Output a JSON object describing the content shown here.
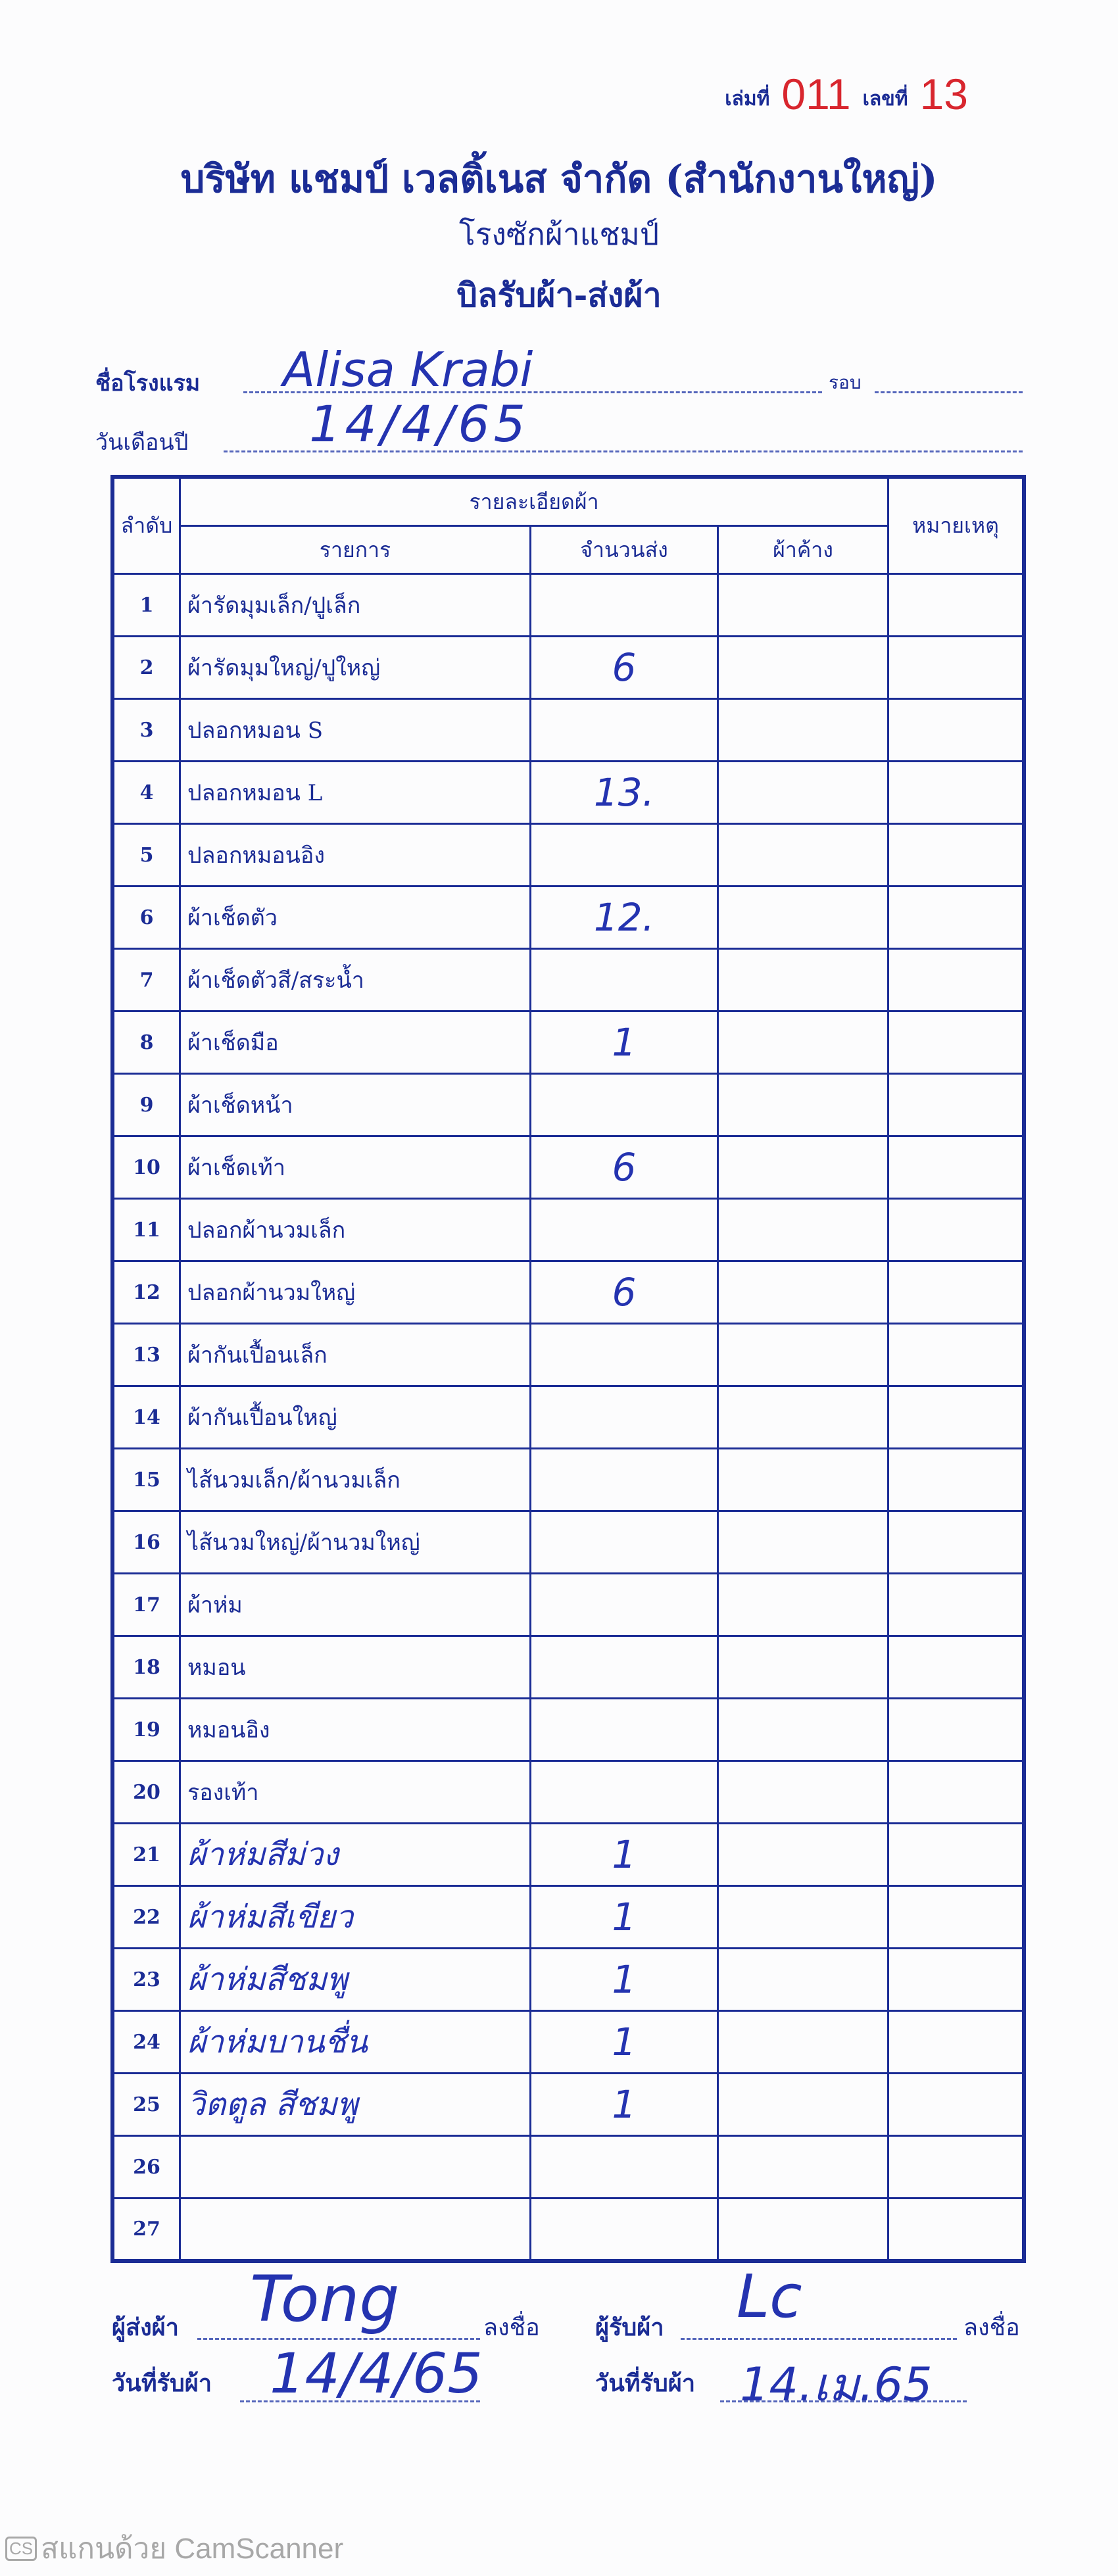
{
  "header": {
    "book_label": "เล่มที่",
    "book_no": "011",
    "number_label": "เลขที่",
    "number": "13",
    "company": "บริษัท แชมป์ เวลติ้เนส จำกัด (สำนักงานใหญ่)",
    "plant": "โรงซักผ้าแชมป์",
    "title": "บิลรับผ้า-ส่งผ้า"
  },
  "form": {
    "hotel_label": "ชื่อโรงแรม",
    "hotel_value": "Alisa Krabi",
    "round_label": "รอบ",
    "round_value": "",
    "date_label": "วันเดือนปี",
    "date_value": "14/4/65"
  },
  "table": {
    "col_no": "ลำดับ",
    "col_group": "รายละเอียดผ้า",
    "col_item": "รายการ",
    "col_qty": "จำนวนส่ง",
    "col_pending": "ผ้าค้าง",
    "col_note": "หมายเหตุ",
    "rows": [
      {
        "no": "1",
        "item": "ผ้ารัดมุมเล็ก/ปูเล็ก",
        "qty": ""
      },
      {
        "no": "2",
        "item": "ผ้ารัดมุมใหญ่/ปูใหญ่",
        "qty": "6"
      },
      {
        "no": "3",
        "item": "ปลอกหมอน S",
        "qty": ""
      },
      {
        "no": "4",
        "item": "ปลอกหมอน L",
        "qty": "13."
      },
      {
        "no": "5",
        "item": "ปลอกหมอนอิง",
        "qty": ""
      },
      {
        "no": "6",
        "item": "ผ้าเช็ดตัว",
        "qty": "12."
      },
      {
        "no": "7",
        "item": "ผ้าเช็ดตัวสี/สระน้ำ",
        "qty": ""
      },
      {
        "no": "8",
        "item": "ผ้าเช็ดมือ",
        "qty": "1"
      },
      {
        "no": "9",
        "item": "ผ้าเช็ดหน้า",
        "qty": ""
      },
      {
        "no": "10",
        "item": "ผ้าเช็ดเท้า",
        "qty": "6"
      },
      {
        "no": "11",
        "item": "ปลอกผ้านวมเล็ก",
        "qty": ""
      },
      {
        "no": "12",
        "item": "ปลอกผ้านวมใหญ่",
        "qty": "6"
      },
      {
        "no": "13",
        "item": "ผ้ากันเปื้อนเล็ก",
        "qty": ""
      },
      {
        "no": "14",
        "item": "ผ้ากันเปื้อนใหญ่",
        "qty": ""
      },
      {
        "no": "15",
        "item": "ไส้นวมเล็ก/ผ้านวมเล็ก",
        "qty": ""
      },
      {
        "no": "16",
        "item": "ไส้นวมใหญ่/ผ้านวมใหญ่",
        "qty": ""
      },
      {
        "no": "17",
        "item": "ผ้าห่ม",
        "qty": ""
      },
      {
        "no": "18",
        "item": "หมอน",
        "qty": ""
      },
      {
        "no": "19",
        "item": "หมอนอิง",
        "qty": ""
      },
      {
        "no": "20",
        "item": "รองเท้า",
        "qty": ""
      },
      {
        "no": "21",
        "item": "ผ้าห่มสีม่วง",
        "qty": "1",
        "handwritten": true
      },
      {
        "no": "22",
        "item": "ผ้าห่มสีเขียว",
        "qty": "1",
        "handwritten": true
      },
      {
        "no": "23",
        "item": "ผ้าห่มสีชมพู",
        "qty": "1",
        "handwritten": true
      },
      {
        "no": "24",
        "item": "ผ้าห่มบานชื่น",
        "qty": "1",
        "handwritten": true
      },
      {
        "no": "25",
        "item": "วิตตูล สีชมพู",
        "qty": "1",
        "handwritten": true
      },
      {
        "no": "26",
        "item": "",
        "qty": ""
      },
      {
        "no": "27",
        "item": "",
        "qty": ""
      }
    ]
  },
  "footer": {
    "sender_label": "ผู้ส่งผ้า",
    "sign_label": "ลงชื่อ",
    "sender_signature": "Tong",
    "receiver_label": "ผู้รับผ้า",
    "receiver_signature": "Lc",
    "date_received_label": "วันที่รับผ้า",
    "sender_date": "14/4/65",
    "receiver_date": "14.เม.65"
  },
  "watermark": {
    "badge": "CS",
    "text": "สแกนด้วย CamScanner"
  }
}
